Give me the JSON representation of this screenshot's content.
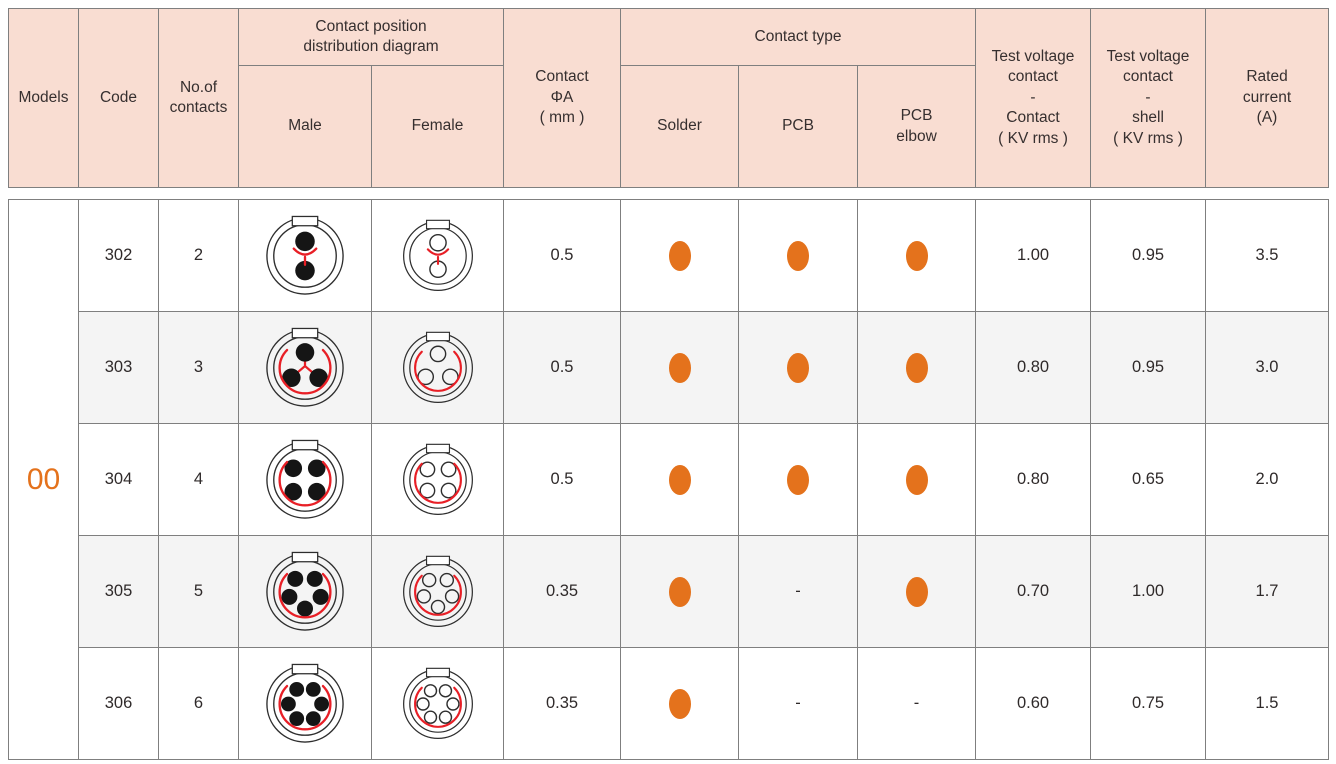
{
  "colors": {
    "header_bg": "#f9ddd2",
    "accent_orange": "#e4721c",
    "alt_row_bg": "#f4f4f4",
    "diagram_red": "#e81f26",
    "border": "#7f7f7f",
    "text": "#362f2f"
  },
  "header": {
    "models": "Models",
    "code": "Code",
    "contacts": "No.of\ncontacts",
    "position_diagram": "Contact position\ndistribution diagram",
    "male": "Male",
    "female": "Female",
    "contact_dia": "Contact\nΦA\n( mm )",
    "contact_type": "Contact type",
    "solder": "Solder",
    "pcb": "PCB",
    "pcb_elbow": "PCB\nelbow",
    "test_voltage_contact": "Test voltage\ncontact\n-\nContact\n( KV rms )",
    "test_voltage_shell": "Test voltage\ncontact\n-\nshell\n( KV rms )",
    "rated_current": "Rated\ncurrent\n(A)"
  },
  "model": "00",
  "no_value_dash": "-",
  "rows": [
    {
      "code": "302",
      "contacts": "2",
      "dia": "0.5",
      "solder": true,
      "pcb": true,
      "pcb_elbow": true,
      "tv_contact": "1.00",
      "tv_shell": "0.95",
      "rated": "3.5"
    },
    {
      "code": "303",
      "contacts": "3",
      "dia": "0.5",
      "solder": true,
      "pcb": true,
      "pcb_elbow": true,
      "tv_contact": "0.80",
      "tv_shell": "0.95",
      "rated": "3.0"
    },
    {
      "code": "304",
      "contacts": "4",
      "dia": "0.5",
      "solder": true,
      "pcb": true,
      "pcb_elbow": true,
      "tv_contact": "0.80",
      "tv_shell": "0.65",
      "rated": "2.0"
    },
    {
      "code": "305",
      "contacts": "5",
      "dia": "0.35",
      "solder": true,
      "pcb": false,
      "pcb_elbow": true,
      "tv_contact": "0.70",
      "tv_shell": "1.00",
      "rated": "1.7"
    },
    {
      "code": "306",
      "contacts": "6",
      "dia": "0.35",
      "solder": true,
      "pcb": false,
      "pcb_elbow": false,
      "tv_contact": "0.60",
      "tv_shell": "0.75",
      "rated": "1.5"
    }
  ]
}
